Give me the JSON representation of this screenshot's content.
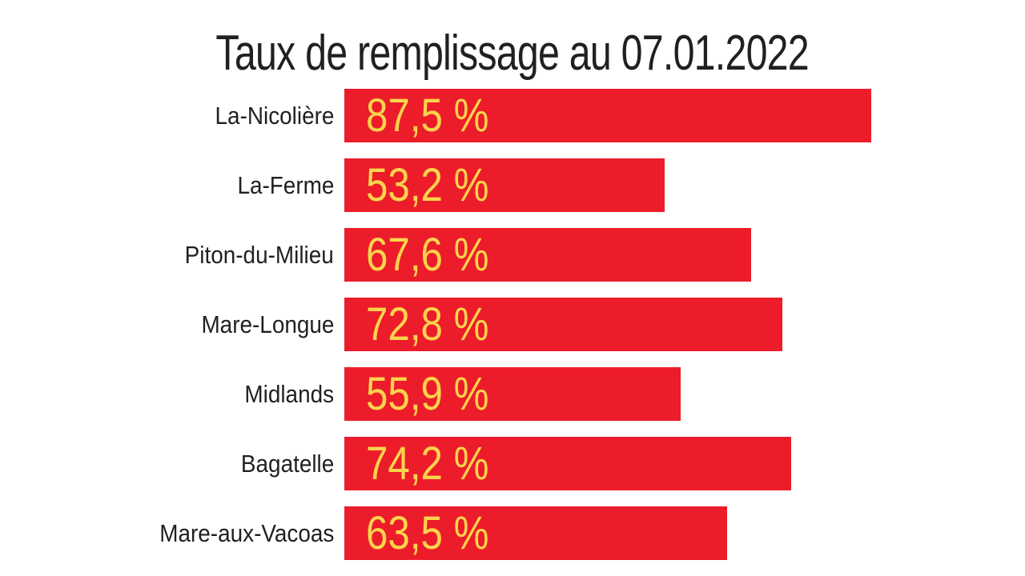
{
  "chart_data": {
    "type": "bar",
    "orientation": "horizontal",
    "title": "Taux de remplissage au 07.01.2022",
    "categories": [
      "La-Nicolière",
      "La-Ferme",
      "Piton-du-Milieu",
      "Mare-Longue",
      "Midlands",
      "Bagatelle",
      "Mare-aux-Vacoas"
    ],
    "values": [
      87.5,
      53.2,
      67.6,
      72.8,
      55.9,
      74.2,
      63.5
    ],
    "display_labels": [
      "87,5 %",
      "53,2 %",
      "67,6 %",
      "72,8 %",
      "55,9 %",
      "74,2 %",
      "63,5 %"
    ],
    "unit": "%",
    "xlim": [
      0,
      100
    ],
    "grid": false,
    "legend": "none",
    "colors": {
      "bar": "#ec1c2b",
      "value_text": "#fbd44c",
      "label_text": "#231f20",
      "background": "#ffffff"
    }
  }
}
